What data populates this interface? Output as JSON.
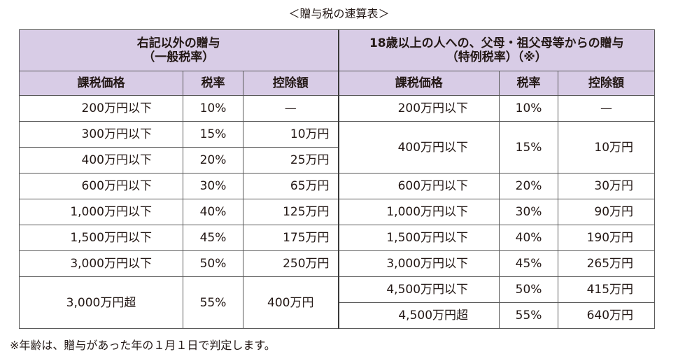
{
  "title": "＜贈与税の速算表＞",
  "groups": {
    "general_line1": "右記以外の贈与",
    "general_line2": "（一般税率）",
    "special_line1": "18歳以上の人への、父母・祖父母等からの贈与",
    "special_line2": "（特例税率）（※）"
  },
  "columns": {
    "price": "課税価格",
    "rate": "税率",
    "deduction": "控除額"
  },
  "general_rows": [
    {
      "price": "200万円以下",
      "rate": "10%",
      "deduction": "—"
    },
    {
      "price": "300万円以下",
      "rate": "15%",
      "deduction": "10万円"
    },
    {
      "price": "400万円以下",
      "rate": "20%",
      "deduction": "25万円"
    },
    {
      "price": "600万円以下",
      "rate": "30%",
      "deduction": "65万円"
    },
    {
      "price": "1,000万円以下",
      "rate": "40%",
      "deduction": "125万円"
    },
    {
      "price": "1,500万円以下",
      "rate": "45%",
      "deduction": "175万円"
    },
    {
      "price": "3,000万円以下",
      "rate": "50%",
      "deduction": "250万円"
    },
    {
      "price": "3,000万円超",
      "rate": "55%",
      "deduction": "400万円"
    }
  ],
  "special_rows": [
    {
      "price": "200万円以下",
      "rate": "10%",
      "deduction": "—"
    },
    {
      "price": "400万円以下",
      "rate": "15%",
      "deduction": "10万円"
    },
    {
      "price": "600万円以下",
      "rate": "20%",
      "deduction": "30万円"
    },
    {
      "price": "1,000万円以下",
      "rate": "30%",
      "deduction": "90万円"
    },
    {
      "price": "1,500万円以下",
      "rate": "40%",
      "deduction": "190万円"
    },
    {
      "price": "3,000万円以下",
      "rate": "45%",
      "deduction": "265万円"
    },
    {
      "price": "4,500万円以下",
      "rate": "50%",
      "deduction": "415万円"
    },
    {
      "price": "4,500万円超",
      "rate": "55%",
      "deduction": "640万円"
    }
  ],
  "note": "※年齢は、贈与があった年の１月１日で判定します。"
}
